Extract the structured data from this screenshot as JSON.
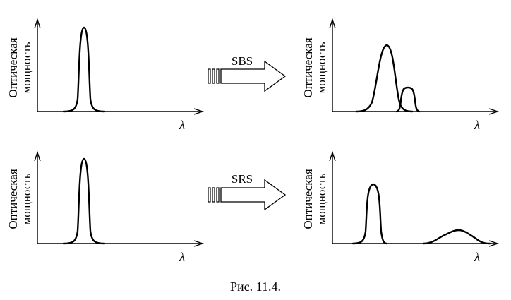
{
  "panels": [
    {
      "id": "top-left",
      "ylabel_line1": "Оптическая",
      "ylabel_line2": "мощность",
      "xlabel": "λ"
    },
    {
      "id": "top-right",
      "ylabel_line1": "Оптическая",
      "ylabel_line2": "мощность",
      "xlabel": "λ"
    },
    {
      "id": "bottom-left",
      "ylabel_line1": "Оптическая",
      "ylabel_line2": "мощность",
      "xlabel": "λ"
    },
    {
      "id": "bottom-right",
      "ylabel_line1": "Оптическая",
      "ylabel_line2": "мощность",
      "xlabel": "λ"
    }
  ],
  "arrows": [
    {
      "label": "SBS"
    },
    {
      "label": "SRS"
    }
  ],
  "caption": "Рис. 11.4."
}
